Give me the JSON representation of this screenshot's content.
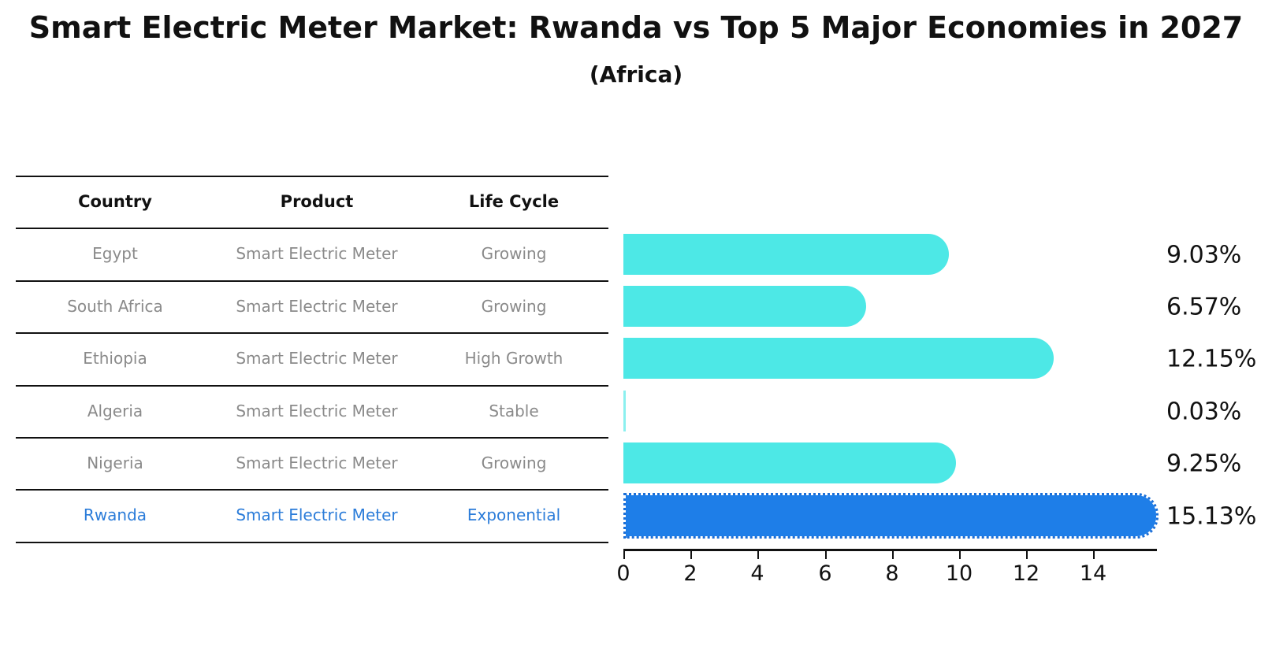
{
  "title": "Smart Electric Meter Market: Rwanda vs Top 5 Major Economies in 2027",
  "subtitle": "(Africa)",
  "table": {
    "columns": [
      "Country",
      "Product",
      "Life Cycle"
    ],
    "rows": [
      {
        "country": "Egypt",
        "product": "Smart Electric Meter",
        "life_cycle": "Growing",
        "value_label": "9.03%",
        "highlight": false
      },
      {
        "country": "South Africa",
        "product": "Smart Electric Meter",
        "life_cycle": "Growing",
        "value_label": "6.57%",
        "highlight": false
      },
      {
        "country": "Ethiopia",
        "product": "Smart Electric Meter",
        "life_cycle": "High Growth",
        "value_label": "12.15%",
        "highlight": false
      },
      {
        "country": "Algeria",
        "product": "Smart Electric Meter",
        "life_cycle": "Stable",
        "value_label": "0.03%",
        "highlight": false
      },
      {
        "country": "Nigeria",
        "product": "Smart Electric Meter",
        "life_cycle": "Growing",
        "value_label": "9.25%",
        "highlight": false
      },
      {
        "country": "Rwanda",
        "product": "Smart Electric Meter",
        "life_cycle": "Exponential",
        "value_label": "15.13%",
        "highlight": true
      }
    ]
  },
  "chart_data": {
    "type": "bar",
    "orientation": "horizontal",
    "title": "Smart Electric Meter Market: Rwanda vs Top 5 Major Economies in 2027",
    "subtitle": "(Africa)",
    "categories": [
      "Egypt",
      "South Africa",
      "Ethiopia",
      "Algeria",
      "Nigeria",
      "Rwanda"
    ],
    "values": [
      9.03,
      6.57,
      12.15,
      0.03,
      9.25,
      15.13
    ],
    "value_labels": [
      "9.03%",
      "6.57%",
      "12.15%",
      "0.03%",
      "9.25%",
      "15.13%"
    ],
    "highlight_index": 5,
    "x_ticks": [
      0,
      2,
      4,
      6,
      8,
      10,
      12,
      14
    ],
    "xlim": [
      0,
      15.9
    ],
    "grid": false,
    "legend": false,
    "bar_color": "#4de8e6",
    "highlight_bar_color": "#1e7ee8",
    "highlight_text_color": "#2b7cd9",
    "text_color": "#8a8a8a"
  }
}
